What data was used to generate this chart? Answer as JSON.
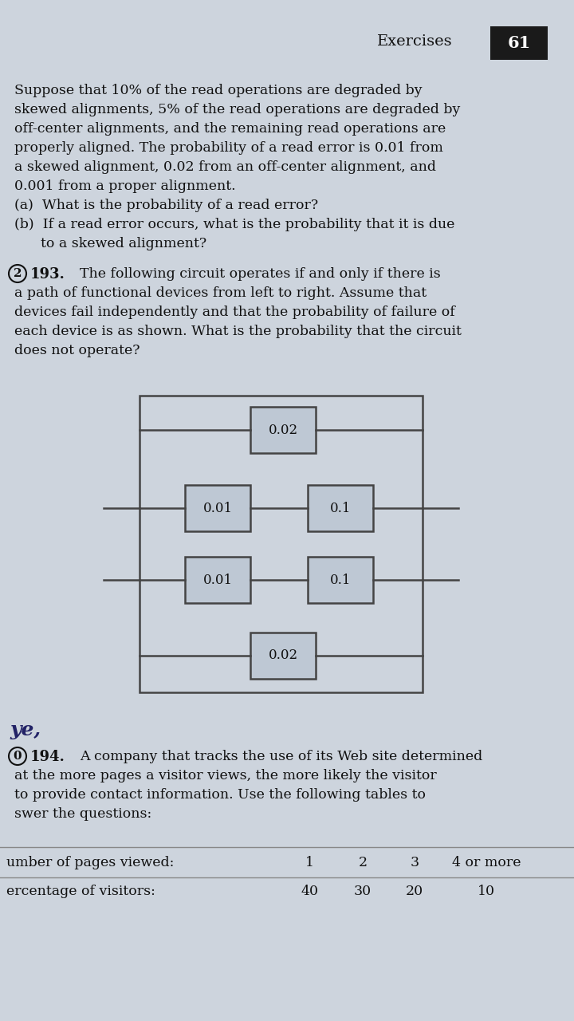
{
  "bg_color": "#cdd4dd",
  "page_header_text": "Exercises",
  "page_number": "61",
  "prev_text_lines": [
    "Suppose that 10% of the read operations are degraded by",
    "skewed alignments, 5% of the read operations are degraded by",
    "off-center alignments, and the remaining read operations are",
    "properly aligned. The probability of a read error is 0.01 from",
    "a skewed alignment, 0.02 from an off-center alignment, and",
    "0.001 from a proper alignment.",
    "(a)  What is the probability of a read error?",
    "(b)  If a read error occurs, what is the probability that it is due",
    "      to a skewed alignment?"
  ],
  "problem_number": "193.",
  "problem_circle": "2",
  "problem_text_lines": [
    "The following circuit operates if and only if there is",
    "a path of functional devices from left to right. Assume that",
    "devices fail independently and that the probability of failure of",
    "each device is as shown. What is the probability that the circuit",
    "does not operate?"
  ],
  "circuit": {
    "top_device": "0.02",
    "mid_row1": [
      "0.01",
      "0.1"
    ],
    "mid_row2": [
      "0.01",
      "0.1"
    ],
    "bottom_device": "0.02"
  },
  "footer_label": "ye,",
  "next_problem_number": "194.",
  "next_problem_circle": "0",
  "next_problem_text_lines": [
    "A company that tracks the use of its Web site determined",
    "at the more pages a visitor views, the more likely the visitor",
    "to provide contact information. Use the following tables to",
    "swer the questions:"
  ],
  "table_header": [
    "umber of pages viewed:",
    "1",
    "2",
    "3",
    "4 or more"
  ],
  "table_row1": [
    "ercentage of visitors:",
    "40",
    "30",
    "20",
    "10"
  ],
  "box_fill": "#bec8d4",
  "box_edge": "#444444",
  "line_color": "#444444",
  "text_color": "#111111"
}
